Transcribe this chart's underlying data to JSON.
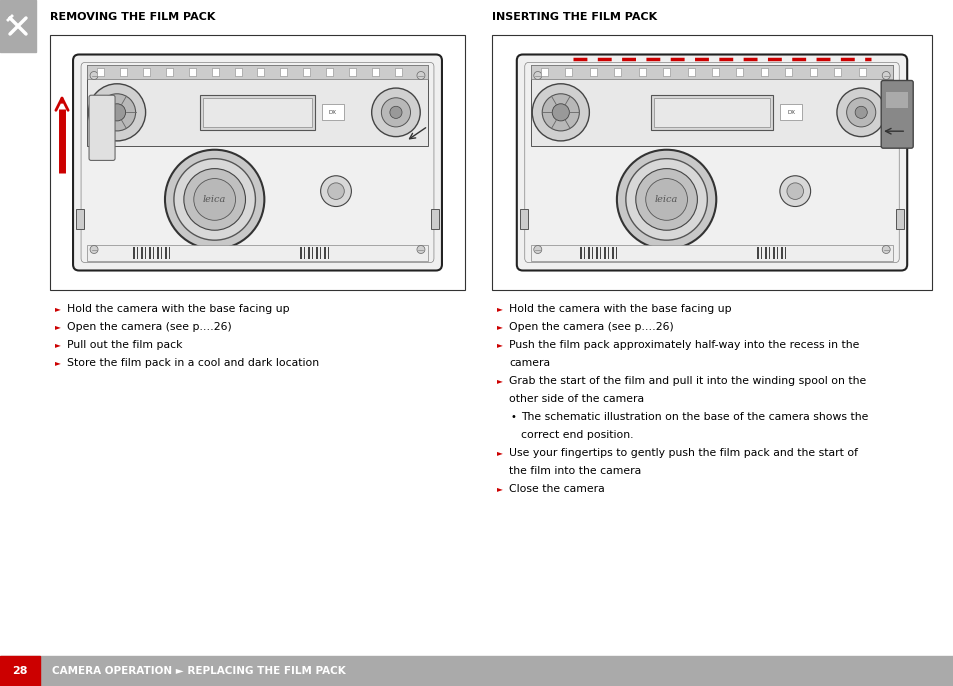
{
  "bg_color": "#ffffff",
  "header_left_title": "REMOVING THE FILM PACK",
  "header_right_title": "INSERTING THE FILM PACK",
  "footer_bar_color": "#aaaaaa",
  "footer_page_num": "28",
  "footer_text": "CAMERA OPERATION ► REPLACING THE FILM PACK",
  "footer_page_color": "#cc0000",
  "footer_text_color": "#ffffff",
  "side_tab_color": "#aaaaaa",
  "title_color": "#000000",
  "bullet_color": "#cc0000",
  "left_bullets": [
    "Hold the camera with the base facing up",
    "Open the camera (see p.…26)",
    "Pull out the film pack",
    "Store the film pack in a cool and dark location"
  ],
  "right_bullets_1": [
    "Hold the camera with the base facing up",
    "Open the camera (see p.…26)",
    "Push the film pack approximately half-way into the recess in the",
    "camera",
    "Grab the start of the film and pull it into the winding spool on the",
    "other side of the camera"
  ],
  "right_sub_bullet_1": "The schematic illustration on the base of the camera shows the",
  "right_sub_bullet_2": "correct end position.",
  "right_bullets_2": [
    "Use your fingertips to gently push the film pack and the start of",
    "the film into the camera",
    "Close the camera"
  ],
  "title_fontsize": 8,
  "body_fontsize": 7.8,
  "footer_fontsize": 7.5,
  "red_arrow_color": "#cc0000",
  "camera_body_color": "#f5f5f5",
  "camera_edge_color": "#333333",
  "camera_detail_color": "#dddddd",
  "camera_dark_color": "#888888",
  "film_dashed_color": "#cc0000",
  "gray_pack_color": "#888888"
}
